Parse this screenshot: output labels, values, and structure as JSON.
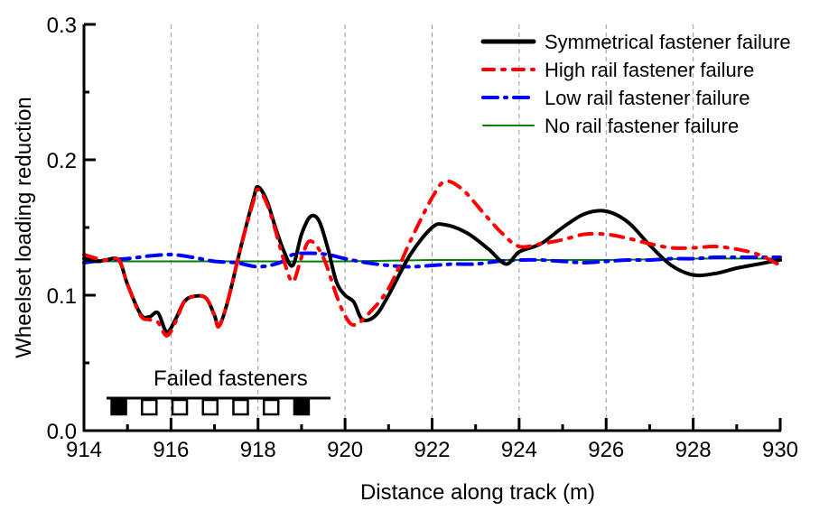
{
  "chart_data": {
    "type": "line",
    "title": "",
    "xlabel": "Distance along track (m)",
    "ylabel": "Wheelset loading reduction",
    "xlim": [
      914,
      930
    ],
    "ylim": [
      0.0,
      0.3
    ],
    "xticks": [
      "914",
      "916",
      "918",
      "920",
      "922",
      "924",
      "926",
      "928",
      "930"
    ],
    "yticks": [
      "0.0",
      "0.1",
      "0.2",
      "0.3"
    ],
    "grid": "vertical dashed",
    "legend_position": "top-right",
    "annotation": "Failed fasteners",
    "fasteners": [
      {
        "x": 914.8,
        "failed": true
      },
      {
        "x": 915.5,
        "failed": false
      },
      {
        "x": 916.2,
        "failed": false
      },
      {
        "x": 916.9,
        "failed": false
      },
      {
        "x": 917.6,
        "failed": false
      },
      {
        "x": 918.3,
        "failed": false
      },
      {
        "x": 919.0,
        "failed": true
      }
    ],
    "series": [
      {
        "name": "Symmetrical fastener failure",
        "color": "#000000",
        "style": "solid",
        "x": [
          914,
          914.3,
          914.5,
          914.8,
          915.0,
          915.3,
          915.5,
          915.7,
          915.9,
          916.1,
          916.3,
          916.5,
          916.8,
          917.0,
          917.1,
          917.3,
          917.6,
          917.9,
          918.0,
          918.2,
          918.4,
          918.6,
          918.8,
          919.0,
          919.2,
          919.4,
          919.6,
          919.8,
          920.0,
          920.2,
          920.4,
          920.7,
          921.0,
          921.5,
          922.0,
          922.3,
          922.8,
          923.3,
          923.7,
          924.0,
          924.5,
          925.0,
          925.5,
          926.0,
          926.5,
          927.0,
          927.5,
          928.0,
          928.5,
          929.0,
          929.5,
          930.0
        ],
        "y": [
          0.127,
          0.125,
          0.126,
          0.126,
          0.108,
          0.086,
          0.084,
          0.087,
          0.073,
          0.082,
          0.095,
          0.099,
          0.098,
          0.085,
          0.077,
          0.095,
          0.135,
          0.172,
          0.18,
          0.17,
          0.15,
          0.132,
          0.122,
          0.145,
          0.158,
          0.155,
          0.135,
          0.11,
          0.1,
          0.095,
          0.082,
          0.085,
          0.1,
          0.13,
          0.15,
          0.152,
          0.146,
          0.134,
          0.123,
          0.132,
          0.138,
          0.15,
          0.16,
          0.162,
          0.154,
          0.137,
          0.122,
          0.115,
          0.116,
          0.12,
          0.123,
          0.126
        ]
      },
      {
        "name": "High rail fastener failure",
        "color": "#ff0000",
        "style": "dash-dot-dot",
        "x": [
          914,
          914.3,
          914.5,
          914.8,
          915.0,
          915.3,
          915.5,
          915.7,
          915.9,
          916.1,
          916.3,
          916.5,
          916.8,
          917.0,
          917.1,
          917.3,
          917.6,
          917.9,
          918.0,
          918.2,
          918.4,
          918.6,
          918.8,
          919.0,
          919.2,
          919.5,
          919.8,
          920.0,
          920.2,
          920.5,
          921.0,
          921.5,
          922.0,
          922.3,
          922.7,
          923.2,
          923.6,
          924.0,
          924.5,
          925.0,
          925.5,
          926.0,
          926.5,
          927.0,
          927.5,
          928.0,
          928.5,
          929.0,
          929.5,
          930.0
        ],
        "y": [
          0.13,
          0.127,
          0.126,
          0.126,
          0.108,
          0.085,
          0.082,
          0.08,
          0.07,
          0.08,
          0.095,
          0.099,
          0.098,
          0.085,
          0.077,
          0.095,
          0.135,
          0.17,
          0.178,
          0.168,
          0.148,
          0.125,
          0.11,
          0.128,
          0.14,
          0.128,
          0.1,
          0.085,
          0.078,
          0.085,
          0.105,
          0.14,
          0.172,
          0.184,
          0.178,
          0.16,
          0.146,
          0.136,
          0.138,
          0.141,
          0.145,
          0.145,
          0.142,
          0.138,
          0.135,
          0.135,
          0.136,
          0.134,
          0.13,
          0.122
        ]
      },
      {
        "name": "Low rail fastener failure",
        "color": "#0000ff",
        "style": "dash-dot",
        "x": [
          914,
          914.5,
          915.0,
          915.5,
          916.0,
          916.5,
          917.0,
          917.5,
          918.0,
          918.5,
          918.8,
          919.2,
          919.6,
          920.0,
          920.5,
          921.0,
          921.5,
          922.0,
          922.5,
          923.0,
          923.5,
          924.0,
          924.5,
          925.0,
          925.5,
          926.0,
          926.5,
          927.0,
          927.5,
          928.0,
          928.5,
          929.0,
          929.5,
          930.0
        ],
        "y": [
          0.124,
          0.126,
          0.127,
          0.129,
          0.13,
          0.128,
          0.125,
          0.124,
          0.121,
          0.124,
          0.13,
          0.131,
          0.13,
          0.127,
          0.124,
          0.122,
          0.121,
          0.122,
          0.123,
          0.123,
          0.125,
          0.126,
          0.126,
          0.125,
          0.124,
          0.125,
          0.126,
          0.126,
          0.127,
          0.127,
          0.128,
          0.128,
          0.128,
          0.128
        ]
      },
      {
        "name": "No rail fastener failure",
        "color": "#008000",
        "style": "solid-thin",
        "x": [
          914,
          916,
          918,
          920,
          922,
          924,
          926,
          928,
          930
        ],
        "y": [
          0.125,
          0.125,
          0.125,
          0.125,
          0.126,
          0.126,
          0.126,
          0.127,
          0.127
        ]
      }
    ]
  }
}
